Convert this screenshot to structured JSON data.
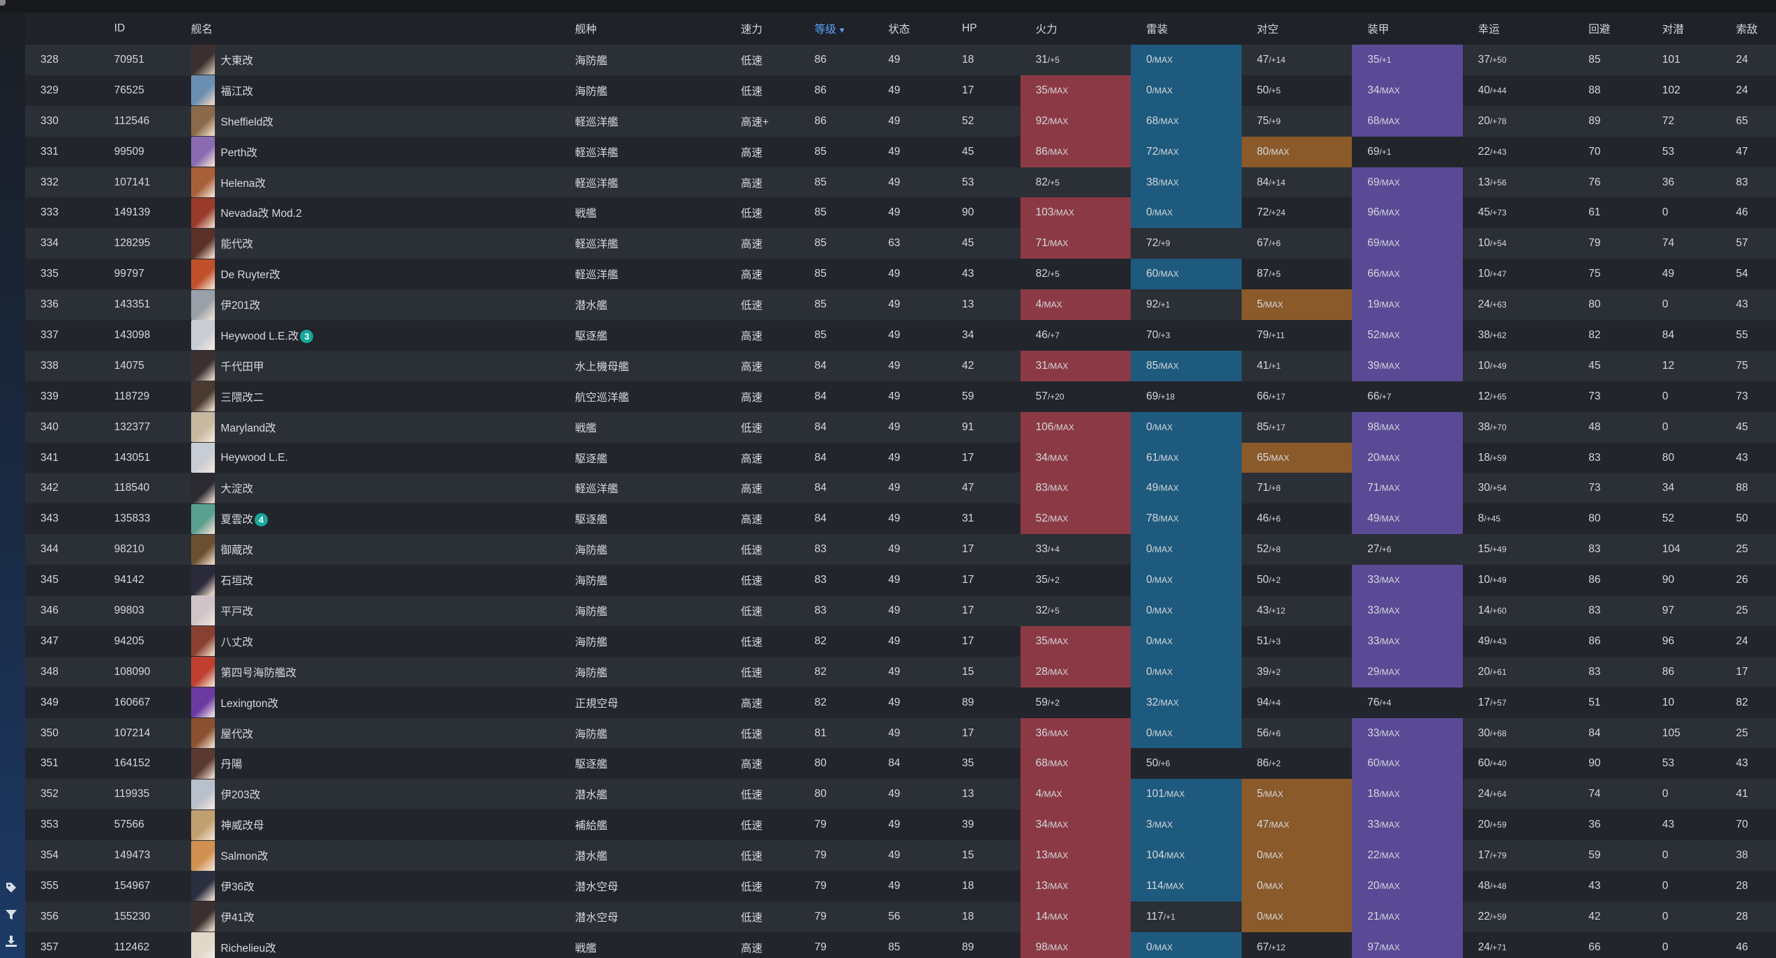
{
  "columns": [
    "",
    "ID",
    "舰名",
    "舰种",
    "速力",
    "等级",
    "状态",
    "HP",
    "火力",
    "雷装",
    "对空",
    "装甲",
    "幸运",
    "回避",
    "对潜",
    "索敌"
  ],
  "sort": {
    "column": "等级",
    "direction": "desc"
  },
  "colors": {
    "fire": "#8b3a45",
    "torpedo": "#1e5a7d",
    "anti_air": "#8a5a2a",
    "armor": "#5a4a95",
    "badge": "#16a89a",
    "sorted_header": "#5aa6ff"
  },
  "sidebar_icons": [
    "tag-icon",
    "filter-icon",
    "download-icon"
  ],
  "rows": [
    {
      "no": "328",
      "id": "70951",
      "name": "大東改",
      "type": "海防艦",
      "speed": "低速",
      "lv": "86",
      "cond": "49",
      "hp": "18",
      "fire": [
        "31",
        "/+5"
      ],
      "torp": [
        "0",
        "/MAX"
      ],
      "aa": [
        "47",
        "/+14"
      ],
      "armor": [
        "35",
        "/+1"
      ],
      "luck": [
        "37",
        "/+50"
      ],
      "eva": "85",
      "asw": "101",
      "los": "24",
      "hl": [
        false,
        true,
        false,
        true
      ],
      "avatar": [
        "#3a3030",
        "#c9b9a8"
      ]
    },
    {
      "no": "329",
      "id": "76525",
      "name": "福江改",
      "type": "海防艦",
      "speed": "低速",
      "lv": "86",
      "cond": "49",
      "hp": "17",
      "fire": [
        "35",
        "/MAX"
      ],
      "torp": [
        "0",
        "/MAX"
      ],
      "aa": [
        "50",
        "/+5"
      ],
      "armor": [
        "34",
        "/MAX"
      ],
      "luck": [
        "40",
        "/+44"
      ],
      "eva": "88",
      "asw": "102",
      "los": "24",
      "hl": [
        true,
        true,
        false,
        true
      ],
      "avatar": [
        "#6a8fb0",
        "#e4d0c0"
      ]
    },
    {
      "no": "330",
      "id": "112546",
      "name": "Sheffield改",
      "type": "軽巡洋艦",
      "speed": "高速+",
      "lv": "86",
      "cond": "49",
      "hp": "52",
      "fire": [
        "92",
        "/MAX"
      ],
      "torp": [
        "68",
        "/MAX"
      ],
      "aa": [
        "75",
        "/+9"
      ],
      "armor": [
        "68",
        "/MAX"
      ],
      "luck": [
        "20",
        "/+78"
      ],
      "eva": "89",
      "asw": "72",
      "los": "65",
      "hl": [
        true,
        true,
        false,
        true
      ],
      "avatar": [
        "#8a6a4a",
        "#e8d5c2"
      ]
    },
    {
      "no": "331",
      "id": "99509",
      "name": "Perth改",
      "type": "軽巡洋艦",
      "speed": "高速",
      "lv": "85",
      "cond": "49",
      "hp": "45",
      "fire": [
        "86",
        "/MAX"
      ],
      "torp": [
        "72",
        "/MAX"
      ],
      "aa": [
        "80",
        "/MAX"
      ],
      "armor": [
        "69",
        "/+1"
      ],
      "luck": [
        "22",
        "/+43"
      ],
      "eva": "70",
      "asw": "53",
      "los": "47",
      "hl": [
        true,
        true,
        true,
        false
      ],
      "avatar": [
        "#8a6ab0",
        "#e8d8d0"
      ]
    },
    {
      "no": "332",
      "id": "107141",
      "name": "Helena改",
      "type": "軽巡洋艦",
      "speed": "高速",
      "lv": "85",
      "cond": "49",
      "hp": "53",
      "fire": [
        "82",
        "/+5"
      ],
      "torp": [
        "38",
        "/MAX"
      ],
      "aa": [
        "84",
        "/+14"
      ],
      "armor": [
        "69",
        "/MAX"
      ],
      "luck": [
        "13",
        "/+56"
      ],
      "eva": "76",
      "asw": "36",
      "los": "83",
      "hl": [
        false,
        true,
        false,
        true
      ],
      "avatar": [
        "#a8603a",
        "#ecd6c4"
      ]
    },
    {
      "no": "333",
      "id": "149139",
      "name": "Nevada改 Mod.2",
      "type": "戦艦",
      "speed": "低速",
      "lv": "85",
      "cond": "49",
      "hp": "90",
      "fire": [
        "103",
        "/MAX"
      ],
      "torp": [
        "0",
        "/MAX"
      ],
      "aa": [
        "72",
        "/+24"
      ],
      "armor": [
        "96",
        "/MAX"
      ],
      "luck": [
        "45",
        "/+73"
      ],
      "eva": "61",
      "asw": "0",
      "los": "46",
      "hl": [
        true,
        true,
        false,
        true
      ],
      "avatar": [
        "#9a3a2a",
        "#e6cdbb"
      ]
    },
    {
      "no": "334",
      "id": "128295",
      "name": "能代改",
      "type": "軽巡洋艦",
      "speed": "高速",
      "lv": "85",
      "cond": "63",
      "hp": "45",
      "fire": [
        "71",
        "/MAX"
      ],
      "torp": [
        "72",
        "/+9"
      ],
      "aa": [
        "67",
        "/+6"
      ],
      "armor": [
        "69",
        "/MAX"
      ],
      "luck": [
        "10",
        "/+54"
      ],
      "eva": "79",
      "asw": "74",
      "los": "57",
      "hl": [
        true,
        false,
        false,
        true
      ],
      "avatar": [
        "#5a3028",
        "#e6d2c2"
      ]
    },
    {
      "no": "335",
      "id": "99797",
      "name": "De Ruyter改",
      "type": "軽巡洋艦",
      "speed": "高速",
      "lv": "85",
      "cond": "49",
      "hp": "43",
      "fire": [
        "82",
        "/+5"
      ],
      "torp": [
        "60",
        "/MAX"
      ],
      "aa": [
        "87",
        "/+5"
      ],
      "armor": [
        "66",
        "/MAX"
      ],
      "luck": [
        "10",
        "/+47"
      ],
      "eva": "75",
      "asw": "49",
      "los": "54",
      "hl": [
        false,
        true,
        false,
        true
      ],
      "avatar": [
        "#c0502a",
        "#eed8c6"
      ]
    },
    {
      "no": "336",
      "id": "143351",
      "name": "伊201改",
      "type": "潜水艦",
      "speed": "低速",
      "lv": "85",
      "cond": "49",
      "hp": "13",
      "fire": [
        "4",
        "/MAX"
      ],
      "torp": [
        "92",
        "/+1"
      ],
      "aa": [
        "5",
        "/MAX"
      ],
      "armor": [
        "19",
        "/MAX"
      ],
      "luck": [
        "24",
        "/+63"
      ],
      "eva": "80",
      "asw": "0",
      "los": "43",
      "hl": [
        true,
        false,
        true,
        true
      ],
      "avatar": [
        "#9aa0a8",
        "#e6dcd4"
      ]
    },
    {
      "no": "337",
      "id": "143098",
      "name": "Heywood L.E.改",
      "badge": "3",
      "type": "駆逐艦",
      "speed": "高速",
      "lv": "85",
      "cond": "49",
      "hp": "34",
      "fire": [
        "46",
        "/+7"
      ],
      "torp": [
        "70",
        "/+3"
      ],
      "aa": [
        "79",
        "/+11"
      ],
      "armor": [
        "52",
        "/MAX"
      ],
      "luck": [
        "38",
        "/+62"
      ],
      "eva": "82",
      "asw": "84",
      "los": "55",
      "hl": [
        false,
        false,
        false,
        true
      ],
      "avatar": [
        "#c8ccd4",
        "#eee4dc"
      ]
    },
    {
      "no": "338",
      "id": "14075",
      "name": "千代田甲",
      "type": "水上機母艦",
      "speed": "高速",
      "lv": "84",
      "cond": "49",
      "hp": "42",
      "fire": [
        "31",
        "/MAX"
      ],
      "torp": [
        "85",
        "/MAX"
      ],
      "aa": [
        "41",
        "/+1"
      ],
      "armor": [
        "39",
        "/MAX"
      ],
      "luck": [
        "10",
        "/+49"
      ],
      "eva": "45",
      "asw": "12",
      "los": "75",
      "hl": [
        true,
        true,
        false,
        true
      ],
      "avatar": [
        "#3a3030",
        "#e2cfbf"
      ]
    },
    {
      "no": "339",
      "id": "118729",
      "name": "三隈改二",
      "type": "航空巡洋艦",
      "speed": "高速",
      "lv": "84",
      "cond": "49",
      "hp": "59",
      "fire": [
        "57",
        "/+20"
      ],
      "torp": [
        "69",
        "/+18"
      ],
      "aa": [
        "66",
        "/+17"
      ],
      "armor": [
        "66",
        "/+7"
      ],
      "luck": [
        "12",
        "/+65"
      ],
      "eva": "73",
      "asw": "0",
      "los": "73",
      "hl": [
        false,
        false,
        false,
        false
      ],
      "avatar": [
        "#4a3a30",
        "#e6d4c2"
      ]
    },
    {
      "no": "340",
      "id": "132377",
      "name": "Maryland改",
      "type": "戦艦",
      "speed": "低速",
      "lv": "84",
      "cond": "49",
      "hp": "91",
      "fire": [
        "106",
        "/MAX"
      ],
      "torp": [
        "0",
        "/MAX"
      ],
      "aa": [
        "85",
        "/+17"
      ],
      "armor": [
        "98",
        "/MAX"
      ],
      "luck": [
        "38",
        "/+70"
      ],
      "eva": "48",
      "asw": "0",
      "los": "45",
      "hl": [
        true,
        true,
        false,
        true
      ],
      "avatar": [
        "#c8b8a0",
        "#eee2d6"
      ]
    },
    {
      "no": "341",
      "id": "143051",
      "name": "Heywood L.E.",
      "type": "駆逐艦",
      "speed": "高速",
      "lv": "84",
      "cond": "49",
      "hp": "17",
      "fire": [
        "34",
        "/MAX"
      ],
      "torp": [
        "61",
        "/MAX"
      ],
      "aa": [
        "65",
        "/MAX"
      ],
      "armor": [
        "20",
        "/MAX"
      ],
      "luck": [
        "18",
        "/+59"
      ],
      "eva": "83",
      "asw": "80",
      "los": "43",
      "hl": [
        true,
        true,
        true,
        true
      ],
      "avatar": [
        "#c8ccd4",
        "#eee4dc"
      ]
    },
    {
      "no": "342",
      "id": "118540",
      "name": "大淀改",
      "type": "軽巡洋艦",
      "speed": "高速",
      "lv": "84",
      "cond": "49",
      "hp": "47",
      "fire": [
        "83",
        "/MAX"
      ],
      "torp": [
        "49",
        "/MAX"
      ],
      "aa": [
        "71",
        "/+8"
      ],
      "armor": [
        "71",
        "/MAX"
      ],
      "luck": [
        "30",
        "/+54"
      ],
      "eva": "73",
      "asw": "34",
      "los": "88",
      "hl": [
        true,
        true,
        false,
        true
      ],
      "avatar": [
        "#2a2a30",
        "#e4d2c4"
      ]
    },
    {
      "no": "343",
      "id": "135833",
      "name": "夏雲改",
      "badge": "4",
      "type": "駆逐艦",
      "speed": "高速",
      "lv": "84",
      "cond": "49",
      "hp": "31",
      "fire": [
        "52",
        "/MAX"
      ],
      "torp": [
        "78",
        "/MAX"
      ],
      "aa": [
        "46",
        "/+6"
      ],
      "armor": [
        "49",
        "/MAX"
      ],
      "luck": [
        "8",
        "/+45"
      ],
      "eva": "80",
      "asw": "52",
      "los": "50",
      "hl": [
        true,
        true,
        false,
        true
      ],
      "avatar": [
        "#5aa090",
        "#e8dacc"
      ]
    },
    {
      "no": "344",
      "id": "98210",
      "name": "御蔵改",
      "type": "海防艦",
      "speed": "低速",
      "lv": "83",
      "cond": "49",
      "hp": "17",
      "fire": [
        "33",
        "/+4"
      ],
      "torp": [
        "0",
        "/MAX"
      ],
      "aa": [
        "52",
        "/+8"
      ],
      "armor": [
        "27",
        "/+6"
      ],
      "luck": [
        "15",
        "/+49"
      ],
      "eva": "83",
      "asw": "104",
      "los": "25",
      "hl": [
        false,
        true,
        false,
        false
      ],
      "avatar": [
        "#6a5030",
        "#e4d0be"
      ]
    },
    {
      "no": "345",
      "id": "94142",
      "name": "石垣改",
      "type": "海防艦",
      "speed": "低速",
      "lv": "83",
      "cond": "49",
      "hp": "17",
      "fire": [
        "35",
        "/+2"
      ],
      "torp": [
        "0",
        "/MAX"
      ],
      "aa": [
        "50",
        "/+2"
      ],
      "armor": [
        "33",
        "/MAX"
      ],
      "luck": [
        "10",
        "/+49"
      ],
      "eva": "86",
      "asw": "90",
      "los": "26",
      "hl": [
        false,
        true,
        false,
        true
      ],
      "avatar": [
        "#2a2a3a",
        "#e4d2c6"
      ]
    },
    {
      "no": "346",
      "id": "99803",
      "name": "平戸改",
      "type": "海防艦",
      "speed": "低速",
      "lv": "83",
      "cond": "49",
      "hp": "17",
      "fire": [
        "32",
        "/+5"
      ],
      "torp": [
        "0",
        "/MAX"
      ],
      "aa": [
        "43",
        "/+12"
      ],
      "armor": [
        "33",
        "/MAX"
      ],
      "luck": [
        "14",
        "/+60"
      ],
      "eva": "83",
      "asw": "97",
      "los": "25",
      "hl": [
        false,
        true,
        false,
        true
      ],
      "avatar": [
        "#d0c4c8",
        "#eee2dc"
      ]
    },
    {
      "no": "347",
      "id": "94205",
      "name": "八丈改",
      "type": "海防艦",
      "speed": "低速",
      "lv": "82",
      "cond": "49",
      "hp": "17",
      "fire": [
        "35",
        "/MAX"
      ],
      "torp": [
        "0",
        "/MAX"
      ],
      "aa": [
        "51",
        "/+3"
      ],
      "armor": [
        "33",
        "/MAX"
      ],
      "luck": [
        "49",
        "/+43"
      ],
      "eva": "86",
      "asw": "96",
      "los": "24",
      "hl": [
        true,
        true,
        false,
        true
      ],
      "avatar": [
        "#8a4030",
        "#e6d0c0"
      ]
    },
    {
      "no": "348",
      "id": "108090",
      "name": "第四号海防艦改",
      "type": "海防艦",
      "speed": "低速",
      "lv": "82",
      "cond": "49",
      "hp": "15",
      "fire": [
        "28",
        "/MAX"
      ],
      "torp": [
        "0",
        "/MAX"
      ],
      "aa": [
        "39",
        "/+2"
      ],
      "armor": [
        "29",
        "/MAX"
      ],
      "luck": [
        "20",
        "/+61"
      ],
      "eva": "83",
      "asw": "86",
      "los": "17",
      "hl": [
        true,
        true,
        false,
        true
      ],
      "avatar": [
        "#c04030",
        "#eed4c4"
      ]
    },
    {
      "no": "349",
      "id": "160667",
      "name": "Lexington改",
      "type": "正規空母",
      "speed": "高速",
      "lv": "82",
      "cond": "49",
      "hp": "89",
      "fire": [
        "59",
        "/+2"
      ],
      "torp": [
        "32",
        "/MAX"
      ],
      "aa": [
        "94",
        "/+4"
      ],
      "armor": [
        "76",
        "/+4"
      ],
      "luck": [
        "17",
        "/+57"
      ],
      "eva": "51",
      "asw": "10",
      "los": "82",
      "hl": [
        false,
        true,
        false,
        false
      ],
      "avatar": [
        "#6a3aa0",
        "#e6d6e0"
      ]
    },
    {
      "no": "350",
      "id": "107214",
      "name": "屋代改",
      "type": "海防艦",
      "speed": "低速",
      "lv": "81",
      "cond": "49",
      "hp": "17",
      "fire": [
        "36",
        "/MAX"
      ],
      "torp": [
        "0",
        "/MAX"
      ],
      "aa": [
        "56",
        "/+6"
      ],
      "armor": [
        "33",
        "/MAX"
      ],
      "luck": [
        "30",
        "/+68"
      ],
      "eva": "84",
      "asw": "105",
      "los": "25",
      "hl": [
        true,
        true,
        false,
        true
      ],
      "avatar": [
        "#8a5030",
        "#e8d2c0"
      ]
    },
    {
      "no": "351",
      "id": "164152",
      "name": "丹陽",
      "type": "駆逐艦",
      "speed": "高速",
      "lv": "80",
      "cond": "84",
      "hp": "35",
      "fire": [
        "68",
        "/MAX"
      ],
      "torp": [
        "50",
        "/+6"
      ],
      "aa": [
        "86",
        "/+2"
      ],
      "armor": [
        "60",
        "/MAX"
      ],
      "luck": [
        "60",
        "/+40"
      ],
      "eva": "90",
      "asw": "53",
      "los": "43",
      "hl": [
        true,
        false,
        false,
        true
      ],
      "avatar": [
        "#5a3a30",
        "#e6d2c4"
      ]
    },
    {
      "no": "352",
      "id": "119935",
      "name": "伊203改",
      "type": "潜水艦",
      "speed": "低速",
      "lv": "80",
      "cond": "49",
      "hp": "13",
      "fire": [
        "4",
        "/MAX"
      ],
      "torp": [
        "101",
        "/MAX"
      ],
      "aa": [
        "5",
        "/MAX"
      ],
      "armor": [
        "18",
        "/MAX"
      ],
      "luck": [
        "24",
        "/+64"
      ],
      "eva": "74",
      "asw": "0",
      "los": "41",
      "hl": [
        true,
        true,
        true,
        true
      ],
      "avatar": [
        "#b8c0cc",
        "#eee4dc"
      ]
    },
    {
      "no": "353",
      "id": "57566",
      "name": "神威改母",
      "type": "補給艦",
      "speed": "低速",
      "lv": "79",
      "cond": "49",
      "hp": "39",
      "fire": [
        "34",
        "/MAX"
      ],
      "torp": [
        "3",
        "/MAX"
      ],
      "aa": [
        "47",
        "/MAX"
      ],
      "armor": [
        "33",
        "/MAX"
      ],
      "luck": [
        "20",
        "/+59"
      ],
      "eva": "36",
      "asw": "43",
      "los": "70",
      "hl": [
        true,
        true,
        true,
        true
      ],
      "avatar": [
        "#c0a070",
        "#eedcc8"
      ]
    },
    {
      "no": "354",
      "id": "149473",
      "name": "Salmon改",
      "type": "潜水艦",
      "speed": "低速",
      "lv": "79",
      "cond": "49",
      "hp": "15",
      "fire": [
        "13",
        "/MAX"
      ],
      "torp": [
        "104",
        "/MAX"
      ],
      "aa": [
        "0",
        "/MAX"
      ],
      "armor": [
        "22",
        "/MAX"
      ],
      "luck": [
        "17",
        "/+79"
      ],
      "eva": "59",
      "asw": "0",
      "los": "38",
      "hl": [
        true,
        true,
        true,
        true
      ],
      "avatar": [
        "#d09050",
        "#eedcc8"
      ]
    },
    {
      "no": "355",
      "id": "154967",
      "name": "伊36改",
      "type": "潜水空母",
      "speed": "低速",
      "lv": "79",
      "cond": "49",
      "hp": "18",
      "fire": [
        "13",
        "/MAX"
      ],
      "torp": [
        "114",
        "/MAX"
      ],
      "aa": [
        "0",
        "/MAX"
      ],
      "armor": [
        "20",
        "/MAX"
      ],
      "luck": [
        "48",
        "/+48"
      ],
      "eva": "43",
      "asw": "0",
      "los": "28",
      "hl": [
        true,
        true,
        true,
        true
      ],
      "avatar": [
        "#2a3040",
        "#e4d4c8"
      ]
    },
    {
      "no": "356",
      "id": "155230",
      "name": "伊41改",
      "type": "潜水空母",
      "speed": "低速",
      "lv": "79",
      "cond": "56",
      "hp": "18",
      "fire": [
        "14",
        "/MAX"
      ],
      "torp": [
        "117",
        "/+1"
      ],
      "aa": [
        "0",
        "/MAX"
      ],
      "armor": [
        "21",
        "/MAX"
      ],
      "luck": [
        "22",
        "/+59"
      ],
      "eva": "42",
      "asw": "0",
      "los": "28",
      "hl": [
        true,
        false,
        true,
        true
      ],
      "avatar": [
        "#3a3030",
        "#e4d2c2"
      ]
    },
    {
      "no": "357",
      "id": "112462",
      "name": "Richelieu改",
      "type": "戦艦",
      "speed": "高速",
      "lv": "79",
      "cond": "85",
      "hp": "89",
      "fire": [
        "98",
        "/MAX"
      ],
      "torp": [
        "0",
        "/MAX"
      ],
      "aa": [
        "67",
        "/+12"
      ],
      "armor": [
        "97",
        "/MAX"
      ],
      "luck": [
        "24",
        "/+71"
      ],
      "eva": "66",
      "asw": "0",
      "los": "46",
      "hl": [
        true,
        true,
        false,
        true
      ],
      "avatar": [
        "#e0d8c8",
        "#f2ece2"
      ]
    }
  ]
}
